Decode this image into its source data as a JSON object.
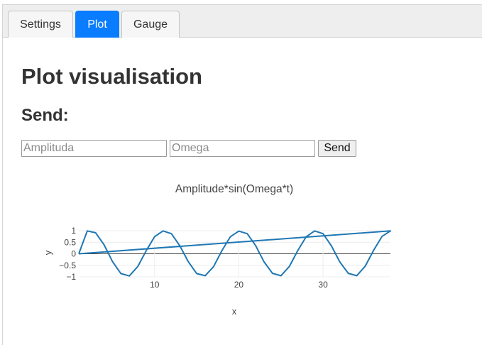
{
  "tabs": [
    {
      "label": "Settings",
      "active": false
    },
    {
      "label": "Plot",
      "active": true
    },
    {
      "label": "Gauge",
      "active": false
    }
  ],
  "main": {
    "title": "Plot visualisation",
    "send_heading": "Send:",
    "amplitude_placeholder": "Amplituda",
    "omega_placeholder": "Omega",
    "send_label": "Send"
  },
  "colors": {
    "accent": "#0a7cff",
    "series": "#1f77b4"
  },
  "chart_data": {
    "type": "line",
    "title": "Amplitude*sin(Omega*t)",
    "xlabel": "x",
    "ylabel": "y",
    "xlim": [
      1,
      38
    ],
    "ylim": [
      -1,
      1
    ],
    "xticks": [
      10,
      20,
      30
    ],
    "yticks": [
      1,
      0.5,
      0,
      -0.5,
      -1
    ],
    "ytick_labels": [
      "1",
      "0.5",
      "0",
      "−0.5",
      "−1"
    ],
    "grid": true,
    "series": [
      {
        "x": [
          1,
          2,
          3,
          4,
          5,
          6,
          7,
          8,
          9,
          10,
          11,
          12,
          13,
          14,
          15,
          16,
          17,
          18,
          19,
          20,
          21,
          22,
          23,
          24,
          25,
          26,
          27,
          28,
          29,
          30,
          31,
          32,
          33,
          34,
          35,
          36,
          37,
          38,
          1
        ],
        "y": [
          0.0,
          0.99,
          0.91,
          0.39,
          -0.34,
          -0.86,
          -0.96,
          -0.55,
          0.13,
          0.74,
          0.99,
          0.87,
          0.34,
          -0.34,
          -0.86,
          -0.95,
          -0.56,
          0.14,
          0.74,
          0.98,
          0.87,
          0.35,
          -0.35,
          -0.85,
          -0.95,
          -0.55,
          0.14,
          0.74,
          0.99,
          0.87,
          0.34,
          -0.36,
          -0.85,
          -0.95,
          -0.54,
          0.15,
          0.75,
          0.99,
          0.0
        ]
      }
    ]
  }
}
